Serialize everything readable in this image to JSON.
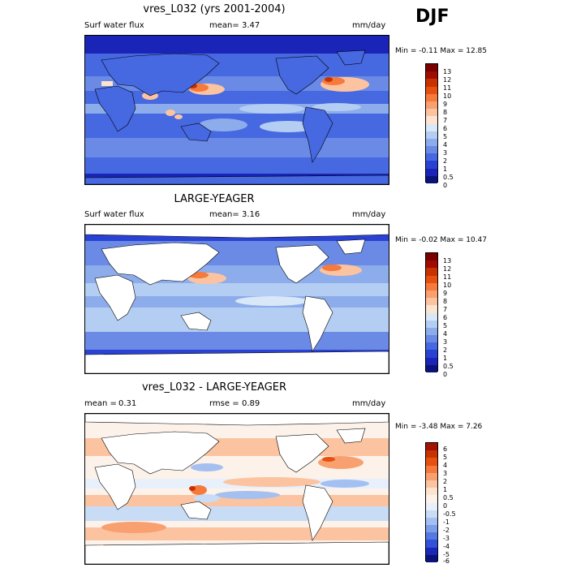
{
  "season": "DJF",
  "panels": [
    {
      "title": "vres_L032 (yrs 2001-2004)",
      "left_label": "Surf water flux",
      "mean_label": "mean=",
      "mean_value": "3.47",
      "units": "mm/day",
      "minmax": "Min =  -0.11 Max =  12.85",
      "land_masked": false,
      "colorbar": {
        "labels": [
          "13",
          "12",
          "11",
          "10",
          "9",
          "8",
          "7",
          "6",
          "5",
          "4",
          "3",
          "2",
          "1",
          "0.5",
          "0"
        ],
        "colors": [
          "#7a0000",
          "#a00c00",
          "#c83200",
          "#e85010",
          "#f57a3c",
          "#f9a070",
          "#fcc3a0",
          "#fde4cf",
          "#d8e8f8",
          "#b4cdf2",
          "#8cacec",
          "#6a8ae6",
          "#4668e0",
          "#2a42d4",
          "#1a25b8",
          "#0a1478"
        ]
      }
    },
    {
      "title": "LARGE-YEAGER",
      "left_label": "Surf water flux",
      "mean_label": "mean=",
      "mean_value": "3.16",
      "units": "mm/day",
      "minmax": "Min =  -0.02 Max =  10.47",
      "land_masked": true,
      "colorbar": {
        "labels": [
          "13",
          "12",
          "11",
          "10",
          "9",
          "8",
          "7",
          "6",
          "5",
          "4",
          "3",
          "2",
          "1",
          "0.5",
          "0"
        ],
        "colors": [
          "#7a0000",
          "#a00c00",
          "#c83200",
          "#e85010",
          "#f57a3c",
          "#f9a070",
          "#fcc3a0",
          "#fde4cf",
          "#d8e8f8",
          "#b4cdf2",
          "#8cacec",
          "#6a8ae6",
          "#4668e0",
          "#2a42d4",
          "#1a25b8",
          "#0a1478"
        ]
      }
    },
    {
      "title": "vres_L032 - LARGE-YEAGER",
      "left_label": "mean =",
      "left_value": "0.31",
      "mean_label": "rmse =",
      "mean_value": "0.89",
      "units": "mm/day",
      "minmax": "Min =  -3.48 Max =  7.26",
      "land_masked": true,
      "colorbar": {
        "labels": [
          "6",
          "5",
          "4",
          "3",
          "2",
          "1",
          "0.5",
          "0",
          "-0.5",
          "-1",
          "-2",
          "-3",
          "-4",
          "-5",
          "-6"
        ],
        "colors": [
          "#a01400",
          "#c83200",
          "#e85010",
          "#f57a3c",
          "#f9a070",
          "#fcc3a0",
          "#fde4cf",
          "#fdf2ea",
          "#e8f0fc",
          "#c8dcf6",
          "#a4c0f0",
          "#7c9ee8",
          "#5678e2",
          "#3250d8",
          "#1a28b8",
          "#0a1478"
        ]
      }
    }
  ]
}
